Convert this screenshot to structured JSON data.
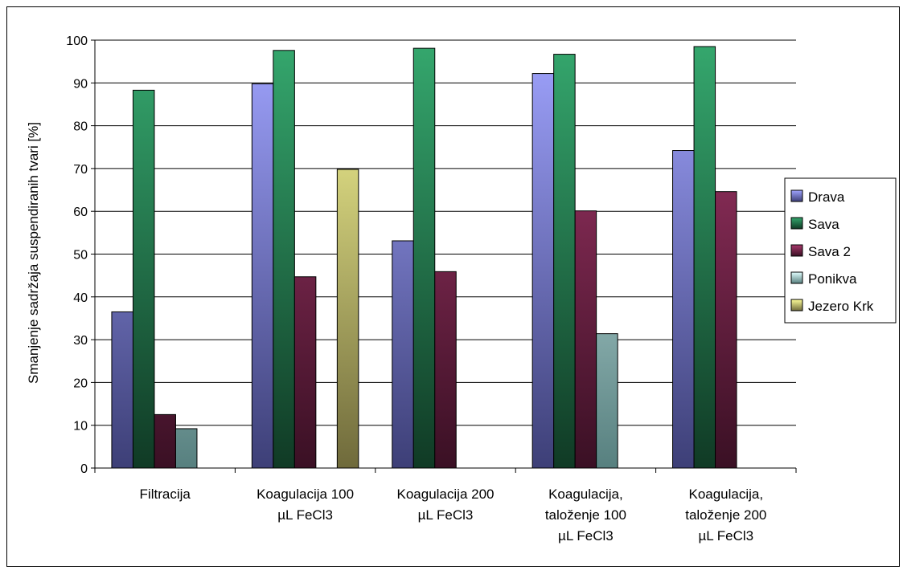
{
  "chart_data": {
    "type": "bar",
    "title": "",
    "ylabel": "Smanjenje sadržaja suspendiranih tvari [%]",
    "xlabel": "",
    "ylim": [
      0,
      100
    ],
    "ytick_step": 10,
    "grid": "horizontal",
    "legend_position": "right",
    "categories": [
      [
        "Filtracija"
      ],
      [
        "Koagulacija 100",
        "µL FeCl3"
      ],
      [
        "Koagulacija 200",
        "µL FeCl3"
      ],
      [
        "Koagulacija,",
        "taloženje 100",
        "µL FeCl3"
      ],
      [
        "Koagulacija,",
        "taloženje 200",
        "µL FeCl3"
      ]
    ],
    "series": [
      {
        "name": "Drava",
        "values": [
          36.5,
          89.8,
          53.1,
          92.2,
          74.2
        ],
        "color_top": "#a0a4ff",
        "color_bottom": "#3d3f77",
        "color": "#9999ff"
      },
      {
        "name": "Sava",
        "values": [
          88.3,
          97.6,
          98.1,
          96.7,
          98.5
        ],
        "color_top": "#35a86e",
        "color_bottom": "#103a25",
        "color": "#339966"
      },
      {
        "name": "Sava 2",
        "values": [
          12.5,
          44.7,
          45.9,
          60.1,
          64.6
        ],
        "color_top": "#a8386c",
        "color_bottom": "#3a1024",
        "color": "#993366"
      },
      {
        "name": "Ponikva",
        "values": [
          9.2,
          null,
          null,
          31.4,
          null
        ],
        "color_top": "#e2ffff",
        "color_bottom": "#57807f",
        "color": "#ccffff"
      },
      {
        "name": "Jezero Krk",
        "values": [
          null,
          69.8,
          null,
          null,
          null
        ],
        "color_top": "#ffff99",
        "color_bottom": "#6f6a3b",
        "color": "#ffff99"
      }
    ]
  }
}
